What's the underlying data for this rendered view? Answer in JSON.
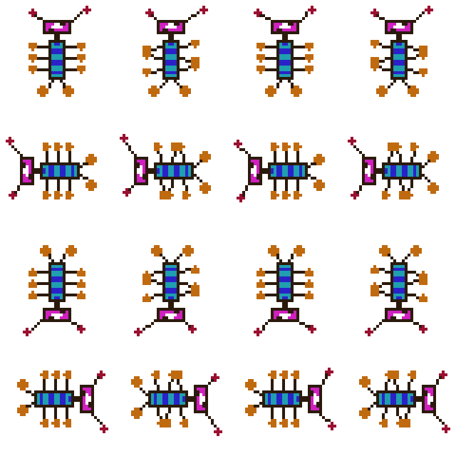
{
  "sheet": {
    "name": "beetle-walk-cycle-spritesheet",
    "rows": 4,
    "columns": 4,
    "frames_per_direction": 4,
    "directions": [
      "down",
      "right",
      "up",
      "left"
    ]
  },
  "colors": {
    "background": "#ffffff",
    "outline": "#2b1a0c",
    "body_cyan": "#1f9fb0",
    "body_blue": "#2a22c8",
    "head_magenta": "#d020c0",
    "head_white": "#ffffff",
    "foot_orange": "#c06a10",
    "antenna_tip": "#9a1030"
  }
}
